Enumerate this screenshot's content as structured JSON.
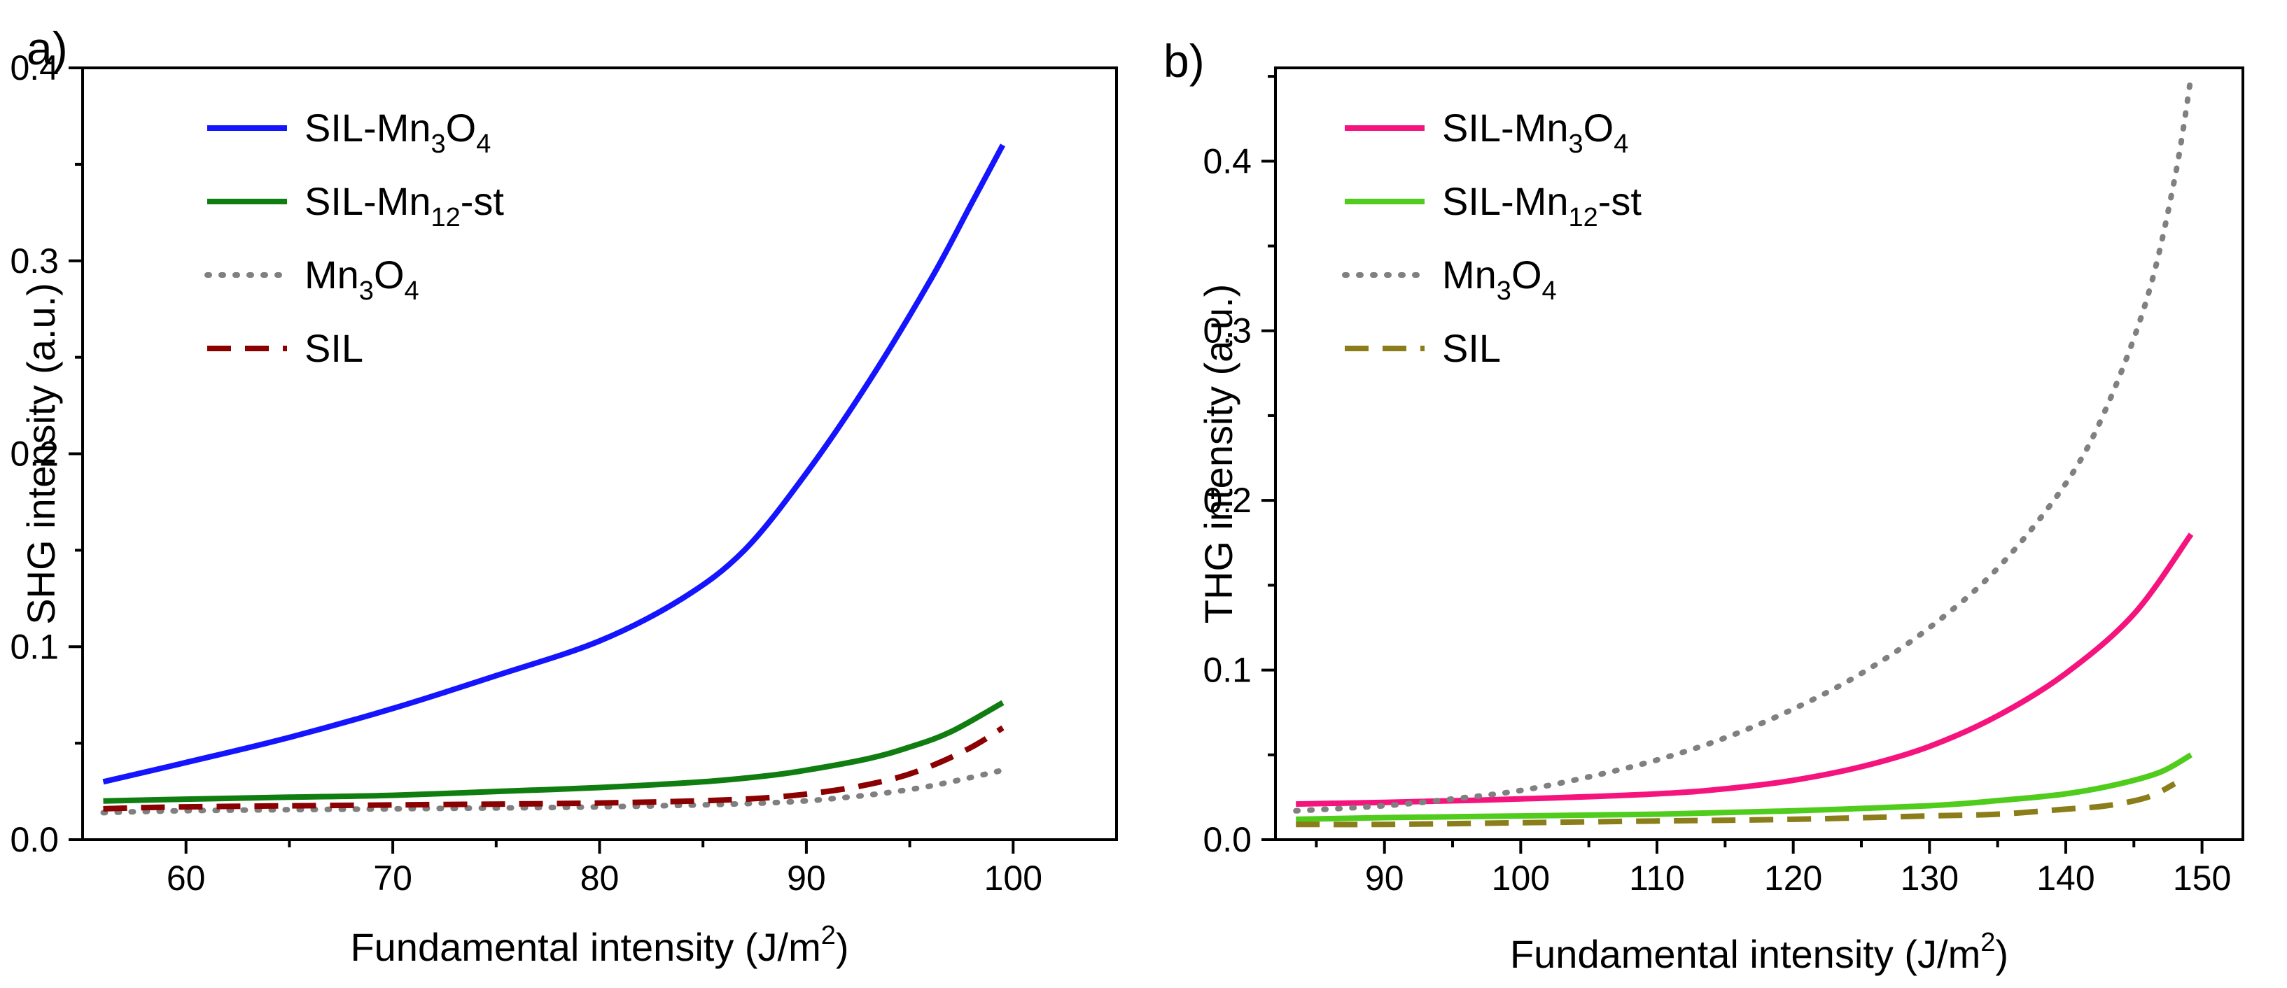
{
  "chart_data": [
    {
      "panel_label": "a)",
      "type": "line",
      "xlabel": "Fundamental intensity (J/m",
      "xlabel_sup": "2",
      "xlabel_end": ")",
      "ylabel": "SHG intensity (a.u.)",
      "xlim": [
        55,
        105
      ],
      "ylim": [
        0,
        0.4
      ],
      "xticks": [
        60,
        70,
        80,
        90,
        100
      ],
      "yticks": [
        0.0,
        0.1,
        0.2,
        0.3,
        0.4
      ],
      "xtick_labels": [
        "60",
        "70",
        "80",
        "90",
        "100"
      ],
      "ytick_labels": [
        "0.0",
        "0.1",
        "0.2",
        "0.3",
        "0.4"
      ],
      "legend_position": "top-left",
      "series": [
        {
          "name": "SIL-Mn3O4",
          "legend": [
            {
              "t": "SIL-Mn"
            },
            {
              "t": "3",
              "sub": true
            },
            {
              "t": "O"
            },
            {
              "t": "4",
              "sub": true
            }
          ],
          "color": "#1414ff",
          "dash": "solid",
          "x": [
            56,
            60,
            65,
            70,
            75,
            80,
            84,
            87,
            90,
            93,
            96,
            98,
            99.5
          ],
          "y": [
            0.03,
            0.04,
            0.053,
            0.068,
            0.085,
            0.103,
            0.125,
            0.15,
            0.19,
            0.237,
            0.29,
            0.33,
            0.36
          ]
        },
        {
          "name": "SIL-Mn12-st",
          "legend": [
            {
              "t": "SIL-Mn"
            },
            {
              "t": "12",
              "sub": true
            },
            {
              "t": "-st"
            }
          ],
          "color": "#0f7d0f",
          "dash": "solid",
          "x": [
            56,
            60,
            65,
            70,
            75,
            80,
            85,
            88,
            90,
            93,
            95,
            97,
            99.5
          ],
          "y": [
            0.02,
            0.021,
            0.022,
            0.023,
            0.025,
            0.027,
            0.03,
            0.033,
            0.036,
            0.042,
            0.048,
            0.056,
            0.071
          ]
        },
        {
          "name": "Mn3O4",
          "legend": [
            {
              "t": "Mn"
            },
            {
              "t": "3",
              "sub": true
            },
            {
              "t": "O"
            },
            {
              "t": "4",
              "sub": true
            }
          ],
          "color": "#808080",
          "dash": "dot",
          "x": [
            56,
            60,
            70,
            80,
            88,
            92,
            95,
            97,
            99.5
          ],
          "y": [
            0.014,
            0.015,
            0.016,
            0.017,
            0.019,
            0.022,
            0.026,
            0.03,
            0.036
          ]
        },
        {
          "name": "SIL",
          "legend": [
            {
              "t": "SIL"
            }
          ],
          "color": "#8b0000",
          "dash": "dash",
          "x": [
            56,
            60,
            70,
            80,
            87,
            91,
            94,
            96,
            98,
            99.5
          ],
          "y": [
            0.016,
            0.017,
            0.018,
            0.019,
            0.021,
            0.025,
            0.031,
            0.038,
            0.048,
            0.058
          ]
        }
      ]
    },
    {
      "panel_label": "b)",
      "type": "line",
      "xlabel": "Fundamental intensity (J/m",
      "xlabel_sup": "2",
      "xlabel_end": ")",
      "ylabel": "THG intensity (a.u.)",
      "xlim": [
        82,
        153
      ],
      "ylim": [
        0,
        0.455
      ],
      "xticks": [
        90,
        100,
        110,
        120,
        130,
        140,
        150
      ],
      "yticks": [
        0.0,
        0.1,
        0.2,
        0.3,
        0.4
      ],
      "xtick_labels": [
        "90",
        "100",
        "110",
        "120",
        "130",
        "140",
        "150"
      ],
      "ytick_labels": [
        "0.0",
        "0.1",
        "0.2",
        "0.3",
        "0.4"
      ],
      "legend_position": "top-left",
      "series": [
        {
          "name": "SIL-Mn3O4",
          "legend": [
            {
              "t": "SIL-Mn"
            },
            {
              "t": "3",
              "sub": true
            },
            {
              "t": "O"
            },
            {
              "t": "4",
              "sub": true
            }
          ],
          "color": "#f5147d",
          "dash": "solid",
          "x": [
            83.5,
            90,
            100,
            110,
            115,
            120,
            125,
            130,
            135,
            140,
            145,
            149.2
          ],
          "y": [
            0.021,
            0.022,
            0.024,
            0.027,
            0.03,
            0.035,
            0.043,
            0.055,
            0.073,
            0.098,
            0.133,
            0.18
          ]
        },
        {
          "name": "SIL-Mn12-st",
          "legend": [
            {
              "t": "SIL-Mn"
            },
            {
              "t": "12",
              "sub": true
            },
            {
              "t": "-st"
            }
          ],
          "color": "#4fcc1c",
          "dash": "solid",
          "x": [
            83.5,
            90,
            100,
            110,
            120,
            130,
            135,
            140,
            144,
            147,
            149.2
          ],
          "y": [
            0.012,
            0.013,
            0.014,
            0.015,
            0.017,
            0.02,
            0.023,
            0.027,
            0.033,
            0.04,
            0.05
          ]
        },
        {
          "name": "Mn3O4",
          "legend": [
            {
              "t": "Mn"
            },
            {
              "t": "3",
              "sub": true
            },
            {
              "t": "O"
            },
            {
              "t": "4",
              "sub": true
            }
          ],
          "color": "#808080",
          "dash": "dot",
          "x": [
            83.5,
            90,
            95,
            100,
            105,
            110,
            115,
            120,
            125,
            130,
            135,
            140,
            143,
            146,
            148,
            149.2
          ],
          "y": [
            0.017,
            0.02,
            0.024,
            0.029,
            0.037,
            0.047,
            0.06,
            0.077,
            0.098,
            0.125,
            0.16,
            0.21,
            0.255,
            0.32,
            0.39,
            0.45
          ]
        },
        {
          "name": "SIL",
          "legend": [
            {
              "t": "SIL"
            }
          ],
          "color": "#8a7d1a",
          "dash": "dash",
          "x": [
            83.5,
            90,
            100,
            110,
            120,
            130,
            135,
            140,
            143,
            146,
            148
          ],
          "y": [
            0.009,
            0.009,
            0.01,
            0.011,
            0.012,
            0.014,
            0.015,
            0.018,
            0.02,
            0.025,
            0.033
          ]
        }
      ]
    }
  ]
}
